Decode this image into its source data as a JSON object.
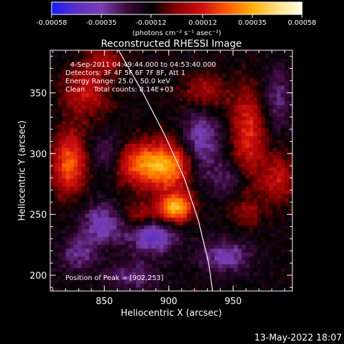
{
  "chart_data": {
    "type": "heatmap",
    "title": "Reconstructed RHESSI Image",
    "xlabel": "Heliocentric X (arcsec)",
    "ylabel": "Heliocentric Y (arcsec)",
    "xlim": [
      808,
      996
    ],
    "ylim": [
      187,
      385
    ],
    "x_ticks": [
      850,
      900,
      950
    ],
    "y_ticks": [
      200,
      250,
      300,
      350
    ],
    "colorbar": {
      "range": [
        -0.00058,
        0.00058
      ],
      "tick_values": [
        -0.00058,
        -0.00035,
        -0.00012,
        0.00012,
        0.00035,
        0.00058
      ],
      "tick_labels": [
        "-0.00058",
        "-0.00035",
        "-0.00012",
        "0.00012",
        "0.00035",
        "0.00058"
      ],
      "unit_label": "(photons cm⁻² s⁻¹ asec⁻²)",
      "colors": [
        "#1b1bff",
        "#5a2fc4",
        "#7a3fb0",
        "#3c0a3c",
        "#000000",
        "#8a0000",
        "#d01010",
        "#ff5a00",
        "#ffae00",
        "#ffe080",
        "#ffffe6"
      ]
    },
    "annotations": [
      "4-Sep-2011 04:49:44.000 to 04:53:40.000",
      "Detectors: 3F 4F 5F 6F 7F 8F, Att 1",
      "Energy Range: 25.0 - 50.0 keV",
      "Clean    Total counts: 8.14E+03",
      "Position of Peak = [902,253]"
    ],
    "peak": {
      "x": 902,
      "y": 253
    },
    "limb": [
      [
        861,
        385
      ],
      [
        880,
        350
      ],
      [
        897,
        315
      ],
      [
        912,
        280
      ],
      [
        923,
        245
      ],
      [
        931,
        210
      ],
      [
        934,
        187
      ]
    ],
    "sources": [
      {
        "x": 900,
        "y": 290,
        "sx": 14,
        "sy": 14,
        "amp": 0.00042
      },
      {
        "x": 906,
        "y": 256,
        "sx": 9,
        "sy": 8,
        "amp": 0.0005
      },
      {
        "x": 876,
        "y": 292,
        "sx": 13,
        "sy": 12,
        "amp": 0.0003
      },
      {
        "x": 823,
        "y": 292,
        "sx": 9,
        "sy": 18,
        "amp": 0.00036
      },
      {
        "x": 836,
        "y": 352,
        "sx": 13,
        "sy": 15,
        "amp": 0.00022
      },
      {
        "x": 928,
        "y": 350,
        "sx": 13,
        "sy": 12,
        "amp": 0.0002
      },
      {
        "x": 962,
        "y": 318,
        "sx": 9,
        "sy": 25,
        "amp": 0.00028
      },
      {
        "x": 985,
        "y": 280,
        "sx": 9,
        "sy": 15,
        "amp": 0.00022
      },
      {
        "x": 960,
        "y": 252,
        "sx": 9,
        "sy": 9,
        "amp": 0.00014
      },
      {
        "x": 876,
        "y": 250,
        "sx": 14,
        "sy": 8,
        "amp": 0.00016
      },
      {
        "x": 852,
        "y": 378,
        "sx": 10,
        "sy": 7,
        "amp": 0.00016
      },
      {
        "x": 888,
        "y": 232,
        "sx": 12,
        "sy": 9,
        "amp": -0.00032
      },
      {
        "x": 850,
        "y": 243,
        "sx": 12,
        "sy": 11,
        "amp": -0.00028
      },
      {
        "x": 925,
        "y": 310,
        "sx": 10,
        "sy": 22,
        "amp": -0.00026
      },
      {
        "x": 853,
        "y": 300,
        "sx": 9,
        "sy": 12,
        "amp": -0.00014
      },
      {
        "x": 944,
        "y": 216,
        "sx": 14,
        "sy": 9,
        "amp": -0.00024
      },
      {
        "x": 872,
        "y": 200,
        "sx": 15,
        "sy": 9,
        "amp": -0.00016
      },
      {
        "x": 830,
        "y": 218,
        "sx": 10,
        "sy": 10,
        "amp": -0.00018
      },
      {
        "x": 985,
        "y": 345,
        "sx": 8,
        "sy": 18,
        "amp": -0.00016
      },
      {
        "x": 945,
        "y": 280,
        "sx": 8,
        "sy": 10,
        "amp": -0.00012
      }
    ]
  },
  "footer": {
    "timestamp": "13-May-2022 18:07"
  }
}
